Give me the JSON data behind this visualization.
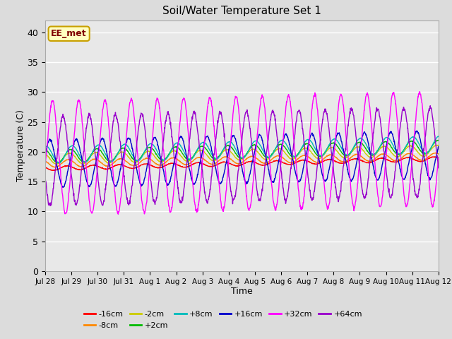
{
  "title": "Soil/Water Temperature Set 1",
  "xlabel": "Time",
  "ylabel": "Temperature (C)",
  "ylim": [
    0,
    42
  ],
  "yticks": [
    0,
    5,
    10,
    15,
    20,
    25,
    30,
    35,
    40
  ],
  "bg_color": "#dcdcdc",
  "plot_bg_color": "#e8e8e8",
  "watermark_text": "EE_met",
  "watermark_bg": "#ffffc0",
  "watermark_border": "#c8a000",
  "watermark_text_color": "#800000",
  "xtick_labels": [
    "Jul 28",
    "Jul 29",
    "Jul 30",
    "Jul 31",
    "Aug 1",
    "Aug 2",
    "Aug 3",
    "Aug 4",
    "Aug 5",
    "Aug 6",
    "Aug 7",
    "Aug 8",
    "Aug 9",
    "Aug 10",
    "Aug 11",
    "Aug 12"
  ],
  "n_points": 1440,
  "n_days": 15,
  "series": [
    {
      "label": "-16cm",
      "color": "#ff0000",
      "mean_s": 17.2,
      "mean_e": 18.8,
      "amp": 0.35,
      "phase": 0.0,
      "noise": 0.03
    },
    {
      "label": "-8cm",
      "color": "#ff8800",
      "mean_s": 18.0,
      "mean_e": 19.2,
      "amp": 0.6,
      "phase": 0.05,
      "noise": 0.03
    },
    {
      "label": "-2cm",
      "color": "#cccc00",
      "mean_s": 18.8,
      "mean_e": 20.2,
      "amp": 0.9,
      "phase": 0.1,
      "noise": 0.03
    },
    {
      "label": "+2cm",
      "color": "#00bb00",
      "mean_s": 19.2,
      "mean_e": 20.8,
      "amp": 1.1,
      "phase": 0.15,
      "noise": 0.03
    },
    {
      "label": "+8cm",
      "color": "#00bbbb",
      "mean_s": 19.5,
      "mean_e": 21.2,
      "amp": 1.4,
      "phase": 0.2,
      "noise": 0.03
    },
    {
      "label": "+16cm",
      "color": "#0000cc",
      "mean_s": 18.0,
      "mean_e": 19.5,
      "amp": 4.0,
      "phase": 0.35,
      "noise": 0.08
    },
    {
      "label": "+32cm",
      "color": "#ff00ff",
      "mean_s": 19.0,
      "mean_e": 20.5,
      "amp": 9.5,
      "phase": 0.45,
      "noise": 0.15
    },
    {
      "label": "+64cm",
      "color": "#9900cc",
      "mean_s": 18.5,
      "mean_e": 20.0,
      "amp": 7.5,
      "phase": 0.85,
      "noise": 0.2
    }
  ]
}
